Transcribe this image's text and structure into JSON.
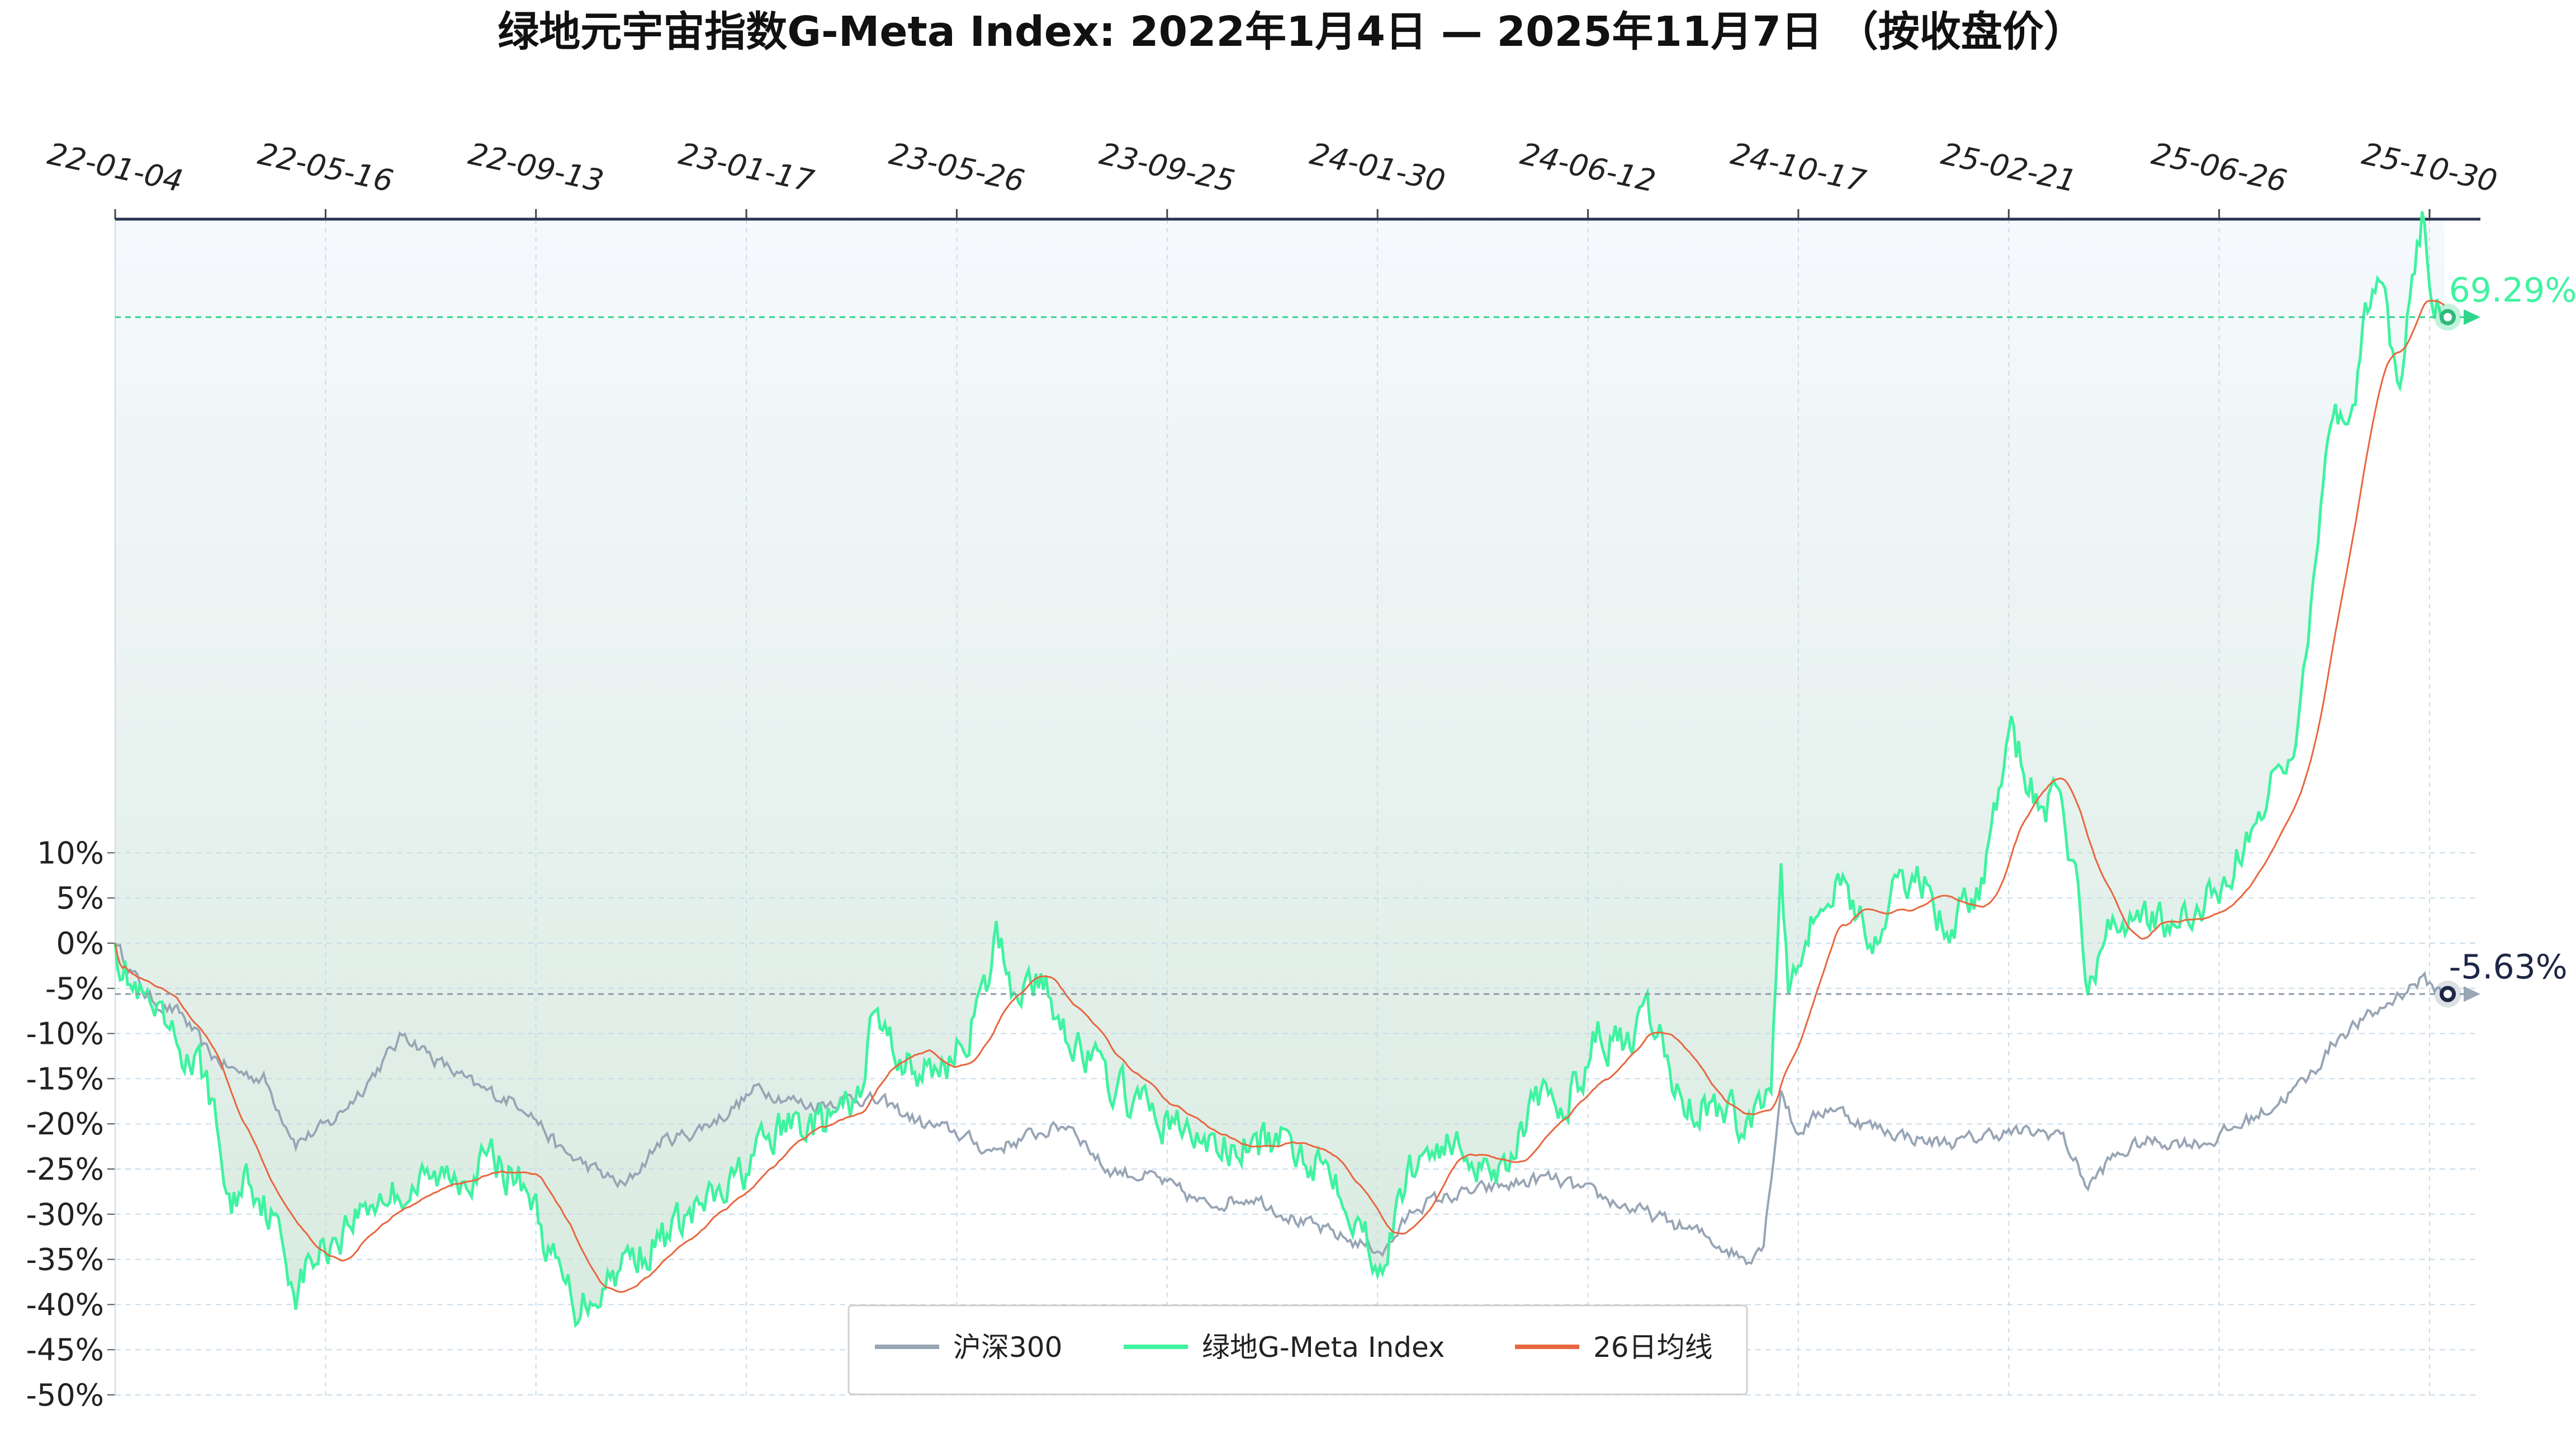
{
  "chart_data": {
    "type": "line",
    "title": "绿地元宇宙指数G-Meta Index:  2022年1月4日  —  2025年11月7日  （按收盘价）",
    "xlabel": "",
    "ylabel": "",
    "x_unit": "trading day index (0 = 2022-01-04, 941 = 2025-11-07)",
    "x_range": [
      0,
      941
    ],
    "x_ticks": [
      {
        "day": 0,
        "label": "22-01-04"
      },
      {
        "day": 85,
        "label": "22-05-16"
      },
      {
        "day": 170,
        "label": "22-09-13"
      },
      {
        "day": 255,
        "label": "23-01-17"
      },
      {
        "day": 340,
        "label": "23-05-26"
      },
      {
        "day": 425,
        "label": "23-09-25"
      },
      {
        "day": 510,
        "label": "24-01-30"
      },
      {
        "day": 595,
        "label": "24-06-12"
      },
      {
        "day": 680,
        "label": "24-10-17"
      },
      {
        "day": 765,
        "label": "25-02-21"
      },
      {
        "day": 850,
        "label": "25-06-26"
      },
      {
        "day": 935,
        "label": "25-10-30"
      }
    ],
    "ylim": [
      -50,
      80
    ],
    "y_ticks": [
      10,
      5,
      0,
      -5,
      -10,
      -15,
      -20,
      -25,
      -30,
      -35,
      -40,
      -45,
      -50
    ],
    "y_tick_suffix": "%",
    "grid": true,
    "legend_position": "bottom-center",
    "ma_window": 26,
    "series": [
      {
        "name": "沪深300",
        "color": "#98a5b5",
        "end_value": -5.63,
        "end_label": "-5.63%",
        "end_label_color": "#1e2646",
        "points": [
          [
            0,
            0
          ],
          [
            13,
            -6
          ],
          [
            27,
            -8
          ],
          [
            37,
            -12
          ],
          [
            47,
            -14
          ],
          [
            60,
            -15
          ],
          [
            73,
            -22
          ],
          [
            87,
            -20
          ],
          [
            100,
            -16
          ],
          [
            117,
            -10
          ],
          [
            130,
            -13
          ],
          [
            146,
            -16
          ],
          [
            166,
            -18
          ],
          [
            180,
            -23
          ],
          [
            193,
            -25
          ],
          [
            206,
            -27
          ],
          [
            220,
            -22
          ],
          [
            233,
            -21
          ],
          [
            246,
            -19
          ],
          [
            260,
            -16
          ],
          [
            280,
            -18
          ],
          [
            300,
            -17
          ],
          [
            313,
            -18
          ],
          [
            326,
            -20
          ],
          [
            340,
            -21
          ],
          [
            353,
            -23
          ],
          [
            373,
            -21
          ],
          [
            386,
            -20
          ],
          [
            400,
            -25
          ],
          [
            420,
            -26
          ],
          [
            440,
            -29
          ],
          [
            460,
            -28
          ],
          [
            480,
            -31
          ],
          [
            500,
            -33
          ],
          [
            513,
            -34
          ],
          [
            526,
            -29
          ],
          [
            540,
            -28
          ],
          [
            559,
            -27
          ],
          [
            579,
            -26
          ],
          [
            599,
            -28
          ],
          [
            619,
            -30
          ],
          [
            639,
            -32
          ],
          [
            659,
            -35
          ],
          [
            666,
            -33
          ],
          [
            673,
            -16
          ],
          [
            679,
            -21
          ],
          [
            693,
            -18
          ],
          [
            706,
            -20
          ],
          [
            719,
            -21
          ],
          [
            733,
            -22
          ],
          [
            746,
            -22
          ],
          [
            759,
            -21
          ],
          [
            773,
            -21
          ],
          [
            786,
            -21
          ],
          [
            797,
            -27
          ],
          [
            806,
            -24
          ],
          [
            819,
            -22
          ],
          [
            833,
            -22
          ],
          [
            846,
            -22
          ],
          [
            859,
            -20
          ],
          [
            872,
            -18
          ],
          [
            886,
            -15
          ],
          [
            899,
            -10
          ],
          [
            912,
            -8
          ],
          [
            926,
            -5
          ],
          [
            932,
            -4
          ],
          [
            941,
            -5.63
          ]
        ]
      },
      {
        "name": "绿地G-Meta Index",
        "color": "#3ff3a0",
        "end_value": 69.29,
        "end_label": "69.29%",
        "end_label_color": "#3ff3a0",
        "points": [
          [
            0,
            0
          ],
          [
            7,
            -5
          ],
          [
            20,
            -10
          ],
          [
            37,
            -15
          ],
          [
            47,
            -30
          ],
          [
            53,
            -25
          ],
          [
            63,
            -30
          ],
          [
            73,
            -38
          ],
          [
            80,
            -35
          ],
          [
            87,
            -33
          ],
          [
            97,
            -30
          ],
          [
            107,
            -28
          ],
          [
            120,
            -27
          ],
          [
            133,
            -26
          ],
          [
            153,
            -24
          ],
          [
            167,
            -27
          ],
          [
            176,
            -35
          ],
          [
            186,
            -40
          ],
          [
            196,
            -38
          ],
          [
            206,
            -35
          ],
          [
            220,
            -33
          ],
          [
            233,
            -30
          ],
          [
            246,
            -28
          ],
          [
            260,
            -23
          ],
          [
            273,
            -20
          ],
          [
            286,
            -20
          ],
          [
            300,
            -18
          ],
          [
            306,
            -8
          ],
          [
            316,
            -12
          ],
          [
            326,
            -15
          ],
          [
            340,
            -12
          ],
          [
            353,
            -5
          ],
          [
            356,
            1
          ],
          [
            363,
            -5
          ],
          [
            373,
            -4
          ],
          [
            386,
            -10
          ],
          [
            400,
            -15
          ],
          [
            413,
            -18
          ],
          [
            426,
            -20
          ],
          [
            440,
            -22
          ],
          [
            453,
            -23
          ],
          [
            466,
            -22
          ],
          [
            480,
            -23
          ],
          [
            493,
            -25
          ],
          [
            506,
            -33
          ],
          [
            513,
            -35
          ],
          [
            523,
            -25
          ],
          [
            533,
            -22
          ],
          [
            546,
            -23
          ],
          [
            559,
            -25
          ],
          [
            573,
            -18
          ],
          [
            586,
            -18
          ],
          [
            599,
            -10
          ],
          [
            613,
            -12
          ],
          [
            619,
            -8
          ],
          [
            626,
            -12
          ],
          [
            633,
            -18
          ],
          [
            646,
            -18
          ],
          [
            659,
            -20
          ],
          [
            669,
            -16
          ],
          [
            673,
            10
          ],
          [
            676,
            -3
          ],
          [
            686,
            3
          ],
          [
            699,
            7
          ],
          [
            709,
            0
          ],
          [
            719,
            5
          ],
          [
            729,
            8
          ],
          [
            739,
            2
          ],
          [
            753,
            5
          ],
          [
            759,
            14
          ],
          [
            766,
            23
          ],
          [
            776,
            16
          ],
          [
            786,
            15
          ],
          [
            793,
            6
          ],
          [
            797,
            -6
          ],
          [
            803,
            0
          ],
          [
            813,
            3
          ],
          [
            819,
            4
          ],
          [
            833,
            1
          ],
          [
            846,
            5
          ],
          [
            859,
            10
          ],
          [
            872,
            18
          ],
          [
            882,
            25
          ],
          [
            889,
            40
          ],
          [
            892,
            50
          ],
          [
            896,
            60
          ],
          [
            902,
            55
          ],
          [
            909,
            68
          ],
          [
            916,
            75
          ],
          [
            922,
            60
          ],
          [
            927,
            70
          ],
          [
            932,
            80
          ],
          [
            936,
            72
          ],
          [
            941,
            69.29
          ]
        ]
      },
      {
        "name": "26日均线",
        "color": "#e8663d"
      }
    ]
  }
}
